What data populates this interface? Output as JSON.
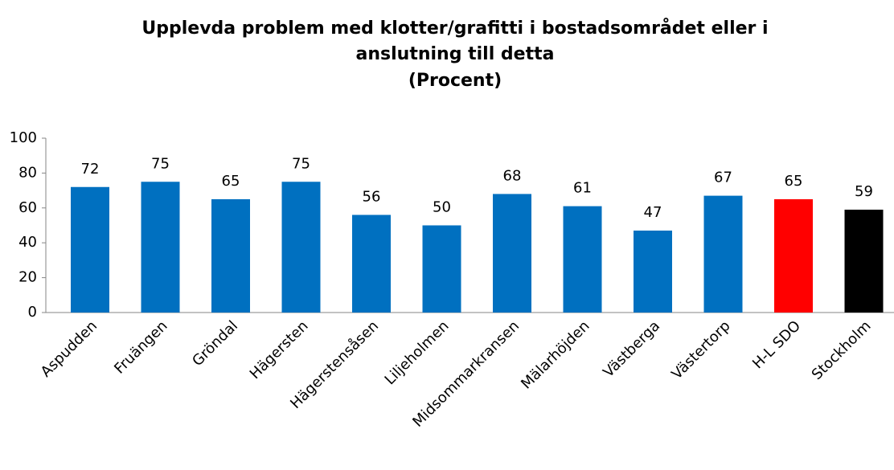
{
  "chart_data": {
    "type": "bar",
    "title": [
      "Upplevda problem med klotter/grafitti i bostadsområdet  eller i",
      "anslutning till detta",
      "(Procent)"
    ],
    "categories": [
      "Aspudden",
      "Fruängen",
      "Gröndal",
      "Hägersten",
      "Hägerstensåsen",
      "Liljeholmen",
      "Midsommarkransen",
      "Mälarhöjden",
      "Västberga",
      "Västertorp",
      "H-L SDO",
      "Stockholm"
    ],
    "values": [
      72,
      75,
      65,
      75,
      56,
      50,
      68,
      61,
      47,
      67,
      65,
      59
    ],
    "colors": [
      "#0070c0",
      "#0070c0",
      "#0070c0",
      "#0070c0",
      "#0070c0",
      "#0070c0",
      "#0070c0",
      "#0070c0",
      "#0070c0",
      "#0070c0",
      "#ff0000",
      "#000000"
    ],
    "ylim": [
      0,
      100
    ],
    "yticks": [
      0,
      20,
      40,
      60,
      80,
      100
    ],
    "grid": false
  }
}
